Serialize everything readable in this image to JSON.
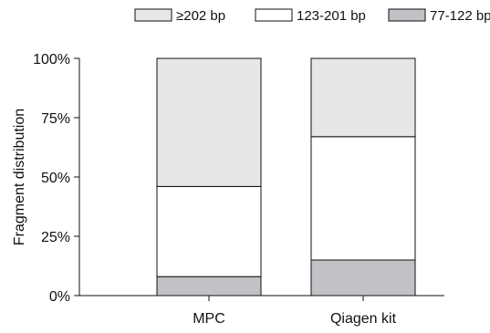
{
  "chart_data": {
    "type": "bar",
    "stacked": true,
    "percent_stacked": true,
    "categories": [
      "MPC",
      "Qiagen kit"
    ],
    "series": [
      {
        "name": "77-122 bp",
        "values": [
          8,
          15
        ],
        "color": "#c2c1c6"
      },
      {
        "name": "123-201 bp",
        "values": [
          38,
          52
        ],
        "color": "#ffffff"
      },
      {
        "name": "≥202 bp",
        "values": [
          54,
          33
        ],
        "color": "#e6e6e8"
      }
    ],
    "legend_order": [
      "≥202 bp",
      "123-201 bp",
      "77-122 bp"
    ],
    "legend_position": "top-right",
    "xlabel": "",
    "ylabel": "Fragment distribution",
    "ylim": [
      0,
      100
    ],
    "yticks": [
      0,
      25,
      50,
      75,
      100
    ],
    "ytick_labels": [
      "0%",
      "25%",
      "50%",
      "75%",
      "100%"
    ],
    "grid": false
  }
}
